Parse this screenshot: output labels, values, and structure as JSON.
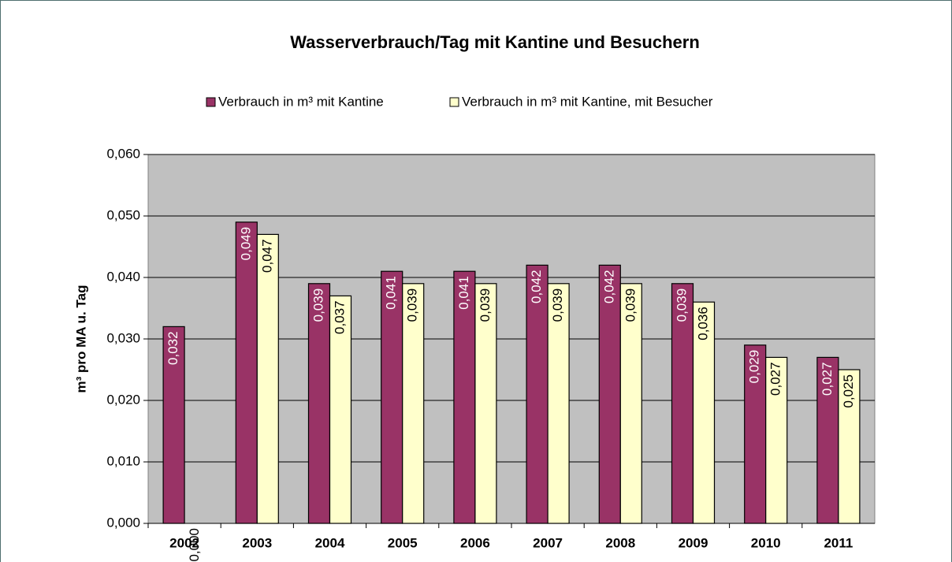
{
  "chart_data": {
    "type": "bar",
    "title": "Wasserverbrauch/Tag mit Kantine und Besuchern",
    "y_label": "m³ pro MA u. Tag",
    "categories": [
      "2002",
      "2003",
      "2004",
      "2005",
      "2006",
      "2007",
      "2008",
      "2009",
      "2010",
      "2011"
    ],
    "series": [
      {
        "name": "Verbrauch in m³ mit Kantine",
        "color": "#993366",
        "values": [
          0.032,
          0.049,
          0.039,
          0.041,
          0.041,
          0.042,
          0.042,
          0.039,
          0.029,
          0.027
        ],
        "value_labels": [
          "0,032",
          "0,049",
          "0,039",
          "0,041",
          "0,041",
          "0,042",
          "0,042",
          "0,039",
          "0,029",
          "0,027"
        ]
      },
      {
        "name": "Verbrauch in m³ mit Kantine, mit Besucher",
        "color": "#ffffcc",
        "values": [
          0,
          0.047,
          0.037,
          0.039,
          0.039,
          0.039,
          0.039,
          0.036,
          0.027,
          0.025
        ],
        "value_labels": [
          "0,000",
          "0,047",
          "0,037",
          "0,039",
          "0,039",
          "0,039",
          "0,039",
          "0,036",
          "0,027",
          "0,025"
        ]
      }
    ],
    "ylim": [
      0,
      0.06
    ],
    "yticks": [
      {
        "value": 0,
        "label": "0,000"
      },
      {
        "value": 0.01,
        "label": "0,010"
      },
      {
        "value": 0.02,
        "label": "0,020"
      },
      {
        "value": 0.03,
        "label": "0,030"
      },
      {
        "value": 0.04,
        "label": "0,040"
      },
      {
        "value": 0.05,
        "label": "0,050"
      },
      {
        "value": 0.06,
        "label": "0,060"
      }
    ],
    "grid": true,
    "plot_background": "#c0c0c0",
    "legend": "top"
  }
}
